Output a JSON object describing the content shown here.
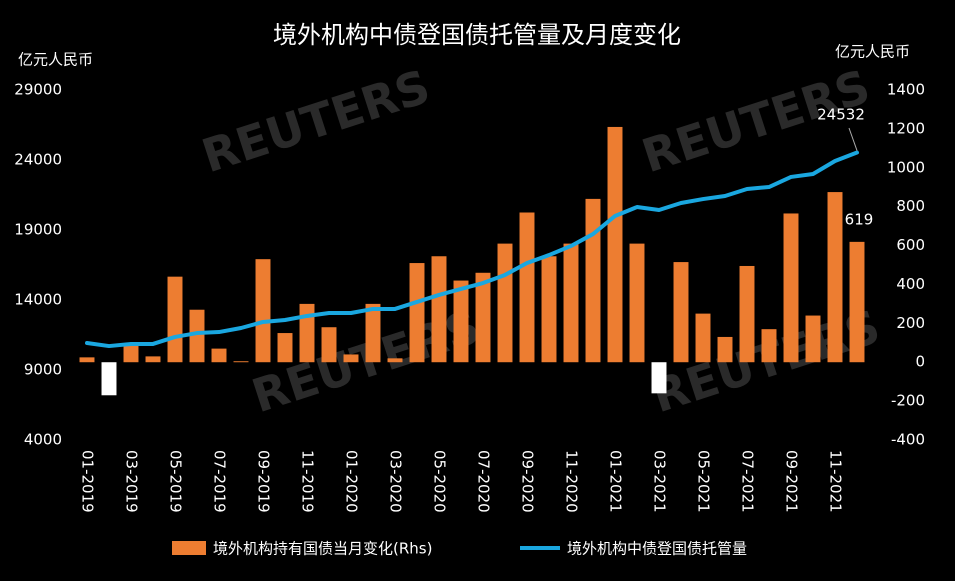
{
  "chart_data": {
    "type": "bar_line",
    "title": "境外机构中债登国债托管量及月度变化",
    "watermark": "REUTERS",
    "y_axis_label": "亿元人民币",
    "y2_axis_label": "亿元人民币",
    "categories": [
      "01-2019",
      null,
      "03-2019",
      null,
      "05-2019",
      null,
      "07-2019",
      null,
      "09-2019",
      null,
      "11-2019",
      null,
      "01-2020",
      null,
      "03-2020",
      null,
      "05-2020",
      null,
      "07-2020",
      null,
      "09-2020",
      null,
      "11-2020",
      null,
      "01-2021",
      null,
      "03-2021",
      null,
      "05-2021",
      null,
      "07-2021",
      null,
      "09-2021",
      null,
      "11-2021",
      null
    ],
    "ylim": [
      4000,
      29000
    ],
    "yticks": [
      4000,
      9000,
      14000,
      19000,
      24000,
      29000
    ],
    "y2lim": [
      -400,
      1400
    ],
    "y2ticks": [
      -400,
      -200,
      0,
      200,
      400,
      600,
      800,
      1000,
      1200,
      1400
    ],
    "negative_color": "#ffffff",
    "series": [
      {
        "name": "境外机构持有国债当月变化(Rhs)",
        "type": "bar",
        "axis": "y2",
        "color": "#ed7d31",
        "values": [
          25,
          -170,
          90,
          30,
          440,
          270,
          70,
          5,
          530,
          150,
          300,
          180,
          40,
          300,
          20,
          510,
          545,
          420,
          460,
          610,
          770,
          545,
          610,
          840,
          1210,
          610,
          -160,
          515,
          250,
          130,
          495,
          170,
          765,
          240,
          875,
          619
        ]
      },
      {
        "name": "境外机构中债登国债托管量",
        "type": "line",
        "color": "#1aa7e0",
        "values": [
          10930,
          10710,
          10860,
          10860,
          11360,
          11640,
          11710,
          12000,
          12430,
          12570,
          12860,
          13070,
          13070,
          13360,
          13360,
          13860,
          14360,
          14790,
          15210,
          15790,
          16640,
          17210,
          17860,
          18710,
          20000,
          20640,
          20430,
          20930,
          21210,
          21430,
          21930,
          22070,
          22790,
          23000,
          23930,
          24532
        ]
      }
    ]
  }
}
